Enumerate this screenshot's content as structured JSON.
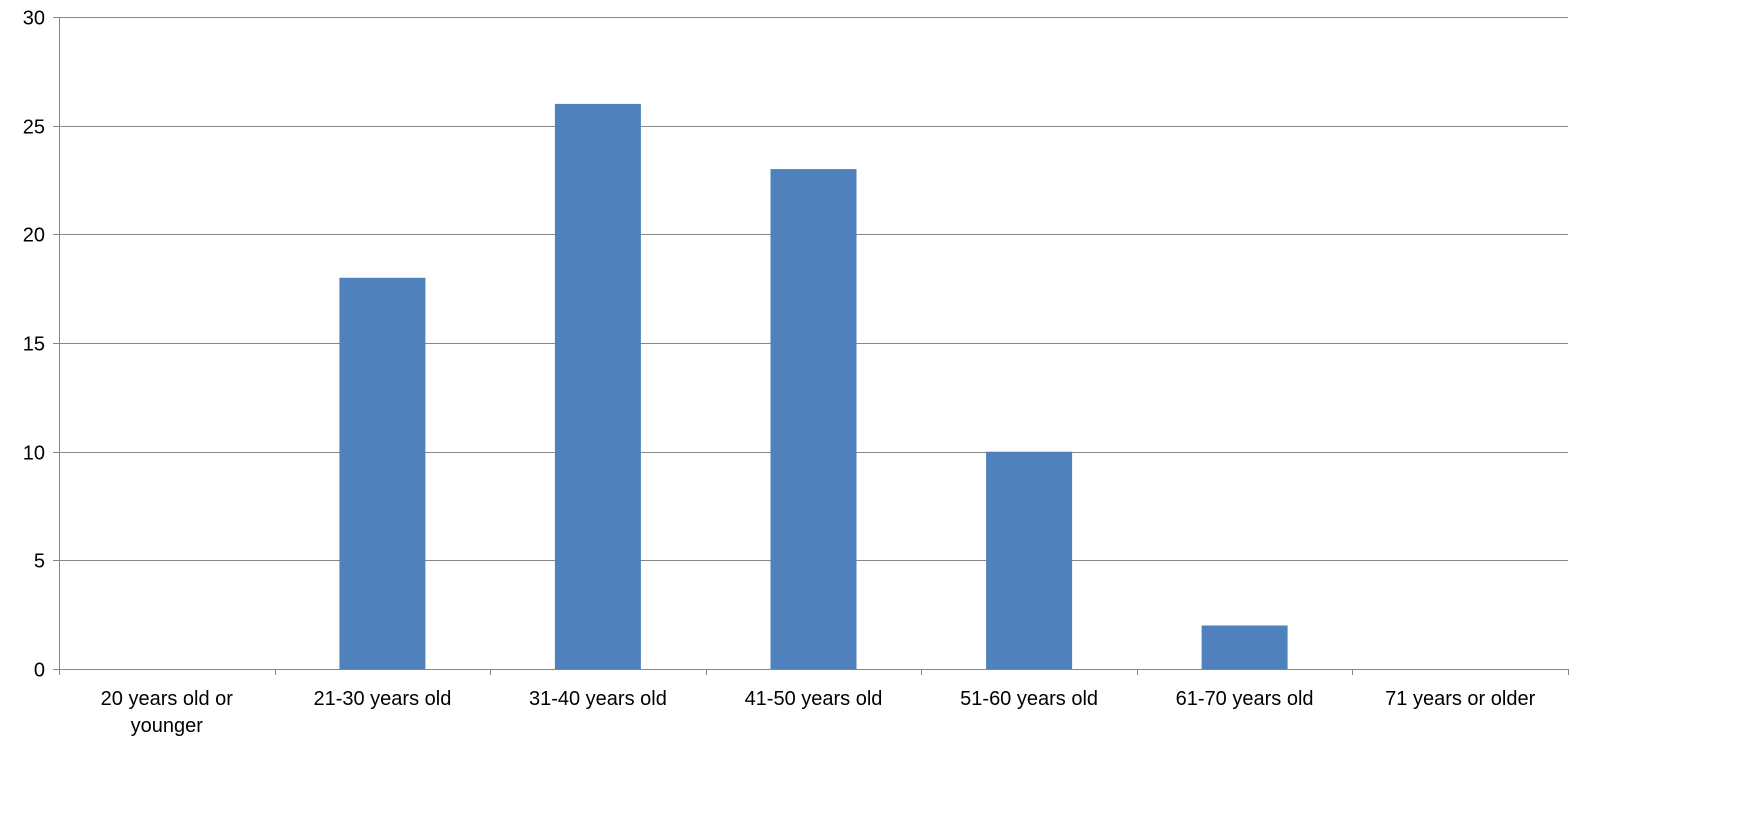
{
  "chart_data": {
    "type": "bar",
    "title": "",
    "xlabel": "",
    "ylabel": "",
    "categories": [
      [
        "20 years old or",
        "younger"
      ],
      [
        "21-30 years old"
      ],
      [
        "31-40 years old"
      ],
      [
        "41-50 years old"
      ],
      [
        "51-60 years old"
      ],
      [
        "61-70 years old"
      ],
      [
        "71 years or older"
      ]
    ],
    "values": [
      0,
      18,
      26,
      23,
      10,
      2,
      0
    ],
    "ylim": [
      0,
      30
    ],
    "yticks": [
      0,
      5,
      10,
      15,
      20,
      25,
      30
    ],
    "grid": true,
    "legend": "none",
    "colors": {
      "bar": "#4F81BD",
      "grid": "#868686",
      "axis": "#868686",
      "text": "#000000"
    }
  }
}
